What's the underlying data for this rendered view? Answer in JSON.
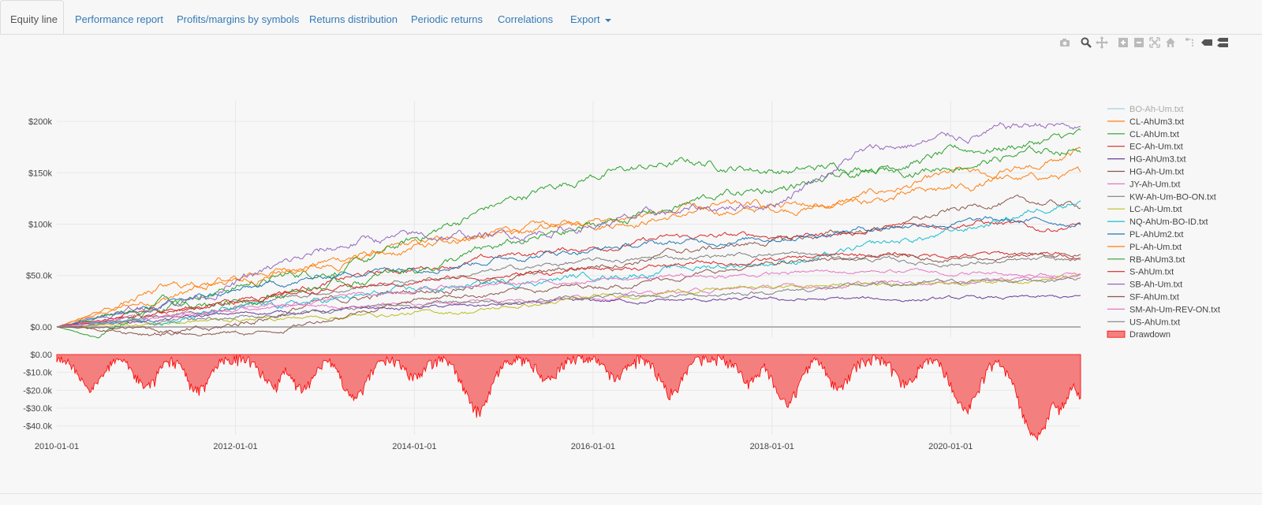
{
  "tabs": [
    {
      "label": "Equity line",
      "active": true
    },
    {
      "label": "Performance report",
      "active": false
    },
    {
      "label": "Profits/margins by symbols",
      "active": false
    },
    {
      "label": "Returns distribution",
      "active": false
    },
    {
      "label": "Periodic returns",
      "active": false
    },
    {
      "label": "Correlations",
      "active": false
    },
    {
      "label": "Export",
      "active": false,
      "dropdown": true
    }
  ],
  "modebar_icons": [
    "camera-icon",
    "zoom-icon",
    "pan-icon",
    "zoom-in-icon",
    "zoom-out-icon",
    "autoscale-icon",
    "home-icon",
    "spike-lines-icon",
    "hover-closest-icon",
    "hover-compare-icon"
  ],
  "colors": {
    "link": "#337ab7",
    "drawdown_fill": "#f47f7f",
    "drawdown_line": "#ff0000",
    "grid": "#e8e8e8",
    "zero_line": "#b0b0b0"
  },
  "chart_data": [
    {
      "type": "line",
      "x_range": [
        "2010-01-01",
        "2021-06-15"
      ],
      "y_range": [
        -10000,
        220000
      ],
      "y_ticks": [
        {
          "value": 0,
          "label": "$0.00"
        },
        {
          "value": 50000,
          "label": "$50.0k"
        },
        {
          "value": 100000,
          "label": "$100k"
        },
        {
          "value": 150000,
          "label": "$150k"
        },
        {
          "value": 200000,
          "label": "$200k"
        }
      ],
      "legend_position": "right",
      "series": [
        {
          "name": "BO-Ah-Um.txt",
          "color": "#a6cee3",
          "legend_muted": true,
          "end": 0,
          "knots": [
            [
              0,
              0
            ],
            [
              1,
              0
            ]
          ]
        },
        {
          "name": "CL-AhUm3.txt",
          "color": "#ff7f0e",
          "end": 147000,
          "knots": [
            [
              0,
              0
            ],
            [
              0.1,
              28000
            ],
            [
              0.25,
              62000
            ],
            [
              0.45,
              95000
            ],
            [
              0.6,
              108000
            ],
            [
              0.75,
              118000
            ],
            [
              0.88,
              148000
            ],
            [
              0.94,
              143000
            ],
            [
              1,
              147000
            ]
          ]
        },
        {
          "name": "CL-AhUm.txt",
          "color": "#2ca02c",
          "end": 186000,
          "knots": [
            [
              0,
              0
            ],
            [
              0.04,
              -8000
            ],
            [
              0.1,
              28000
            ],
            [
              0.2,
              45000
            ],
            [
              0.3,
              62000
            ],
            [
              0.42,
              115000
            ],
            [
              0.52,
              148000
            ],
            [
              0.62,
              160000
            ],
            [
              0.72,
              152000
            ],
            [
              0.8,
              158000
            ],
            [
              0.9,
              172000
            ],
            [
              1,
              186000
            ]
          ]
        },
        {
          "name": "EC-Ah-Um.txt",
          "color": "#d62728",
          "end": 101000,
          "knots": [
            [
              0,
              0
            ],
            [
              0.15,
              22000
            ],
            [
              0.3,
              50000
            ],
            [
              0.45,
              70000
            ],
            [
              0.6,
              86000
            ],
            [
              0.75,
              90000
            ],
            [
              0.9,
              104000
            ],
            [
              0.96,
              94000
            ],
            [
              1,
              101000
            ]
          ]
        },
        {
          "name": "HG-AhUm3.txt",
          "color": "#6a3d9a",
          "end": 28000,
          "knots": [
            [
              0,
              0
            ],
            [
              0.2,
              14000
            ],
            [
              0.4,
              20000
            ],
            [
              0.55,
              25000
            ],
            [
              0.7,
              26000
            ],
            [
              1,
              28000
            ]
          ]
        },
        {
          "name": "HG-Ah-Um.txt",
          "color": "#8c564b",
          "end": 118000,
          "knots": [
            [
              0,
              0
            ],
            [
              0.15,
              -5000
            ],
            [
              0.25,
              22000
            ],
            [
              0.45,
              48000
            ],
            [
              0.6,
              72000
            ],
            [
              0.8,
              95000
            ],
            [
              0.92,
              122000
            ],
            [
              1,
              118000
            ]
          ]
        },
        {
          "name": "JY-Ah-Um.txt",
          "color": "#e377c2",
          "end": 50000,
          "knots": [
            [
              0,
              0
            ],
            [
              0.2,
              18000
            ],
            [
              0.4,
              25000
            ],
            [
              0.6,
              34000
            ],
            [
              0.8,
              42000
            ],
            [
              1,
              50000
            ]
          ]
        },
        {
          "name": "KW-Ah-Um-BO-ON.txt",
          "color": "#7f7f7f",
          "end": 64000,
          "knots": [
            [
              0,
              0
            ],
            [
              0.15,
              18000
            ],
            [
              0.3,
              40000
            ],
            [
              0.5,
              62000
            ],
            [
              0.7,
              72000
            ],
            [
              0.85,
              62000
            ],
            [
              1,
              64000
            ]
          ]
        },
        {
          "name": "LC-Ah-Um.txt",
          "color": "#bcbd22",
          "end": 49000,
          "knots": [
            [
              0,
              0
            ],
            [
              0.2,
              8000
            ],
            [
              0.4,
              15000
            ],
            [
              0.6,
              35000
            ],
            [
              0.8,
              42000
            ],
            [
              1,
              49000
            ]
          ]
        },
        {
          "name": "NQ-AhUm-BO-ID.txt",
          "color": "#17becf",
          "end": 127000,
          "knots": [
            [
              0,
              0
            ],
            [
              0.2,
              18000
            ],
            [
              0.4,
              40000
            ],
            [
              0.6,
              56000
            ],
            [
              0.75,
              68000
            ],
            [
              0.88,
              92000
            ],
            [
              1,
              127000
            ]
          ]
        },
        {
          "name": "PL-AhUm2.txt",
          "color": "#1f77b4",
          "end": 102000,
          "knots": [
            [
              0,
              0
            ],
            [
              0.15,
              30000
            ],
            [
              0.3,
              55000
            ],
            [
              0.5,
              74000
            ],
            [
              0.7,
              88000
            ],
            [
              0.85,
              102000
            ],
            [
              1,
              102000
            ]
          ]
        },
        {
          "name": "PL-Ah-Um.txt",
          "color": "#ff7f0e",
          "end": 170000,
          "knots": [
            [
              0,
              0
            ],
            [
              0.1,
              35000
            ],
            [
              0.25,
              60000
            ],
            [
              0.4,
              85000
            ],
            [
              0.6,
              112000
            ],
            [
              0.8,
              122000
            ],
            [
              0.9,
              138000
            ],
            [
              1,
              170000
            ]
          ]
        },
        {
          "name": "RB-AhUm3.txt",
          "color": "#2ca02c",
          "end": 175000,
          "knots": [
            [
              0,
              0
            ],
            [
              0.1,
              18000
            ],
            [
              0.3,
              45000
            ],
            [
              0.5,
              92000
            ],
            [
              0.65,
              128000
            ],
            [
              0.8,
              148000
            ],
            [
              0.9,
              162000
            ],
            [
              1,
              175000
            ]
          ]
        },
        {
          "name": "S-AhUm.txt",
          "color": "#d62728",
          "end": 70000,
          "knots": [
            [
              0,
              0
            ],
            [
              0.2,
              30000
            ],
            [
              0.4,
              48000
            ],
            [
              0.6,
              60000
            ],
            [
              0.8,
              70000
            ],
            [
              1,
              70000
            ]
          ]
        },
        {
          "name": "SB-Ah-Um.txt",
          "color": "#9467bd",
          "end": 192000,
          "knots": [
            [
              0,
              0
            ],
            [
              0.15,
              35000
            ],
            [
              0.3,
              85000
            ],
            [
              0.45,
              90000
            ],
            [
              0.6,
              110000
            ],
            [
              0.7,
              122000
            ],
            [
              0.78,
              168000
            ],
            [
              0.88,
              185000
            ],
            [
              0.97,
              198000
            ],
            [
              1,
              192000
            ]
          ]
        },
        {
          "name": "SF-AhUm.txt",
          "color": "#8c564b",
          "end": 69000,
          "knots": [
            [
              0,
              0
            ],
            [
              0.2,
              -6000
            ],
            [
              0.35,
              28000
            ],
            [
              0.55,
              42000
            ],
            [
              0.75,
              66000
            ],
            [
              1,
              69000
            ]
          ]
        },
        {
          "name": "SM-Ah-Um-REV-ON.txt",
          "color": "#e377c2",
          "end": 50000,
          "knots": [
            [
              0,
              0
            ],
            [
              0.2,
              22000
            ],
            [
              0.4,
              40000
            ],
            [
              0.6,
              48000
            ],
            [
              0.8,
              55000
            ],
            [
              1,
              50000
            ]
          ]
        },
        {
          "name": "US-AhUm.txt",
          "color": "#7f7f7f",
          "end": 49000,
          "knots": [
            [
              0,
              0
            ],
            [
              0.2,
              12000
            ],
            [
              0.4,
              25000
            ],
            [
              0.6,
              30000
            ],
            [
              0.8,
              40000
            ],
            [
              1,
              49000
            ]
          ]
        }
      ]
    },
    {
      "type": "area",
      "series_name": "Drawdown",
      "x_range": [
        "2010-01-01",
        "2021-06-15"
      ],
      "y_range": [
        -45000,
        0
      ],
      "y_ticks": [
        {
          "value": 0,
          "label": "$0.00"
        },
        {
          "value": -10000,
          "label": "-$10.0k"
        },
        {
          "value": -20000,
          "label": "-$20.0k"
        },
        {
          "value": -30000,
          "label": "-$30.0k"
        },
        {
          "value": -40000,
          "label": "-$40.0k"
        }
      ],
      "x_ticks": [
        "2010-01-01",
        "2012-01-01",
        "2014-01-01",
        "2016-01-01",
        "2018-01-01",
        "2020-01-01"
      ],
      "troughs": [
        {
          "date": "2010-05-15",
          "value": -17000
        },
        {
          "date": "2011-01-01",
          "value": -16000
        },
        {
          "date": "2011-08-01",
          "value": -18000
        },
        {
          "date": "2012-06-01",
          "value": -15000
        },
        {
          "date": "2012-10-01",
          "value": -17000
        },
        {
          "date": "2013-05-01",
          "value": -22000
        },
        {
          "date": "2014-01-01",
          "value": -10000
        },
        {
          "date": "2014-09-15",
          "value": -29000
        },
        {
          "date": "2015-07-01",
          "value": -12000
        },
        {
          "date": "2016-04-01",
          "value": -10000
        },
        {
          "date": "2016-11-15",
          "value": -19000
        },
        {
          "date": "2017-10-01",
          "value": -13000
        },
        {
          "date": "2018-03-01",
          "value": -25000
        },
        {
          "date": "2018-10-01",
          "value": -16000
        },
        {
          "date": "2019-07-01",
          "value": -14000
        },
        {
          "date": "2020-03-01",
          "value": -28000
        },
        {
          "date": "2020-12-15",
          "value": -44000
        },
        {
          "date": "2021-03-15",
          "value": -28000
        },
        {
          "date": "2021-07-01",
          "value": -24000
        }
      ]
    }
  ]
}
